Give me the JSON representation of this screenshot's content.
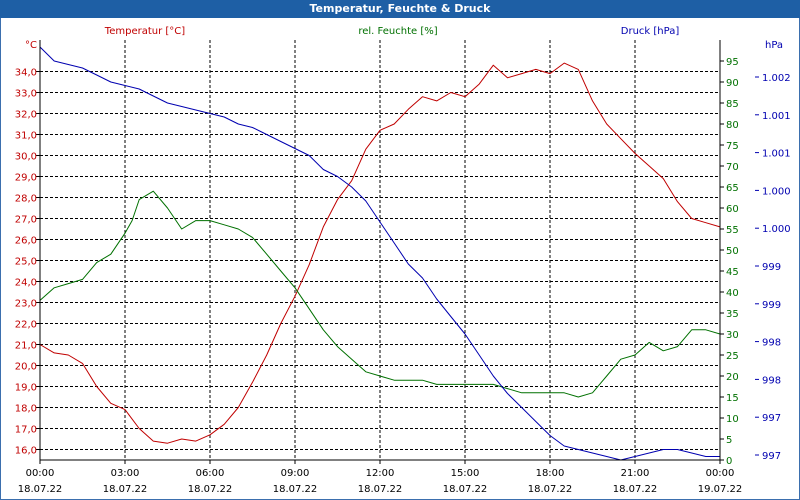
{
  "window": {
    "title": "Temperatur, Feuchte & Druck"
  },
  "colors": {
    "temperature": "#c00000",
    "humidity": "#007000",
    "pressure": "#0000b0",
    "grid": "#000000",
    "axis_text": "#000000",
    "titlebar": "#1e5fa5"
  },
  "chart_data": {
    "type": "line",
    "title": "Temperatur, Feuchte & Druck",
    "grid": true,
    "x_labels": [
      {
        "time": "00:00",
        "date": "18.07.22"
      },
      {
        "time": "03:00",
        "date": "18.07.22"
      },
      {
        "time": "06:00",
        "date": "18.07.22"
      },
      {
        "time": "09:00",
        "date": "18.07.22"
      },
      {
        "time": "12:00",
        "date": "18.07.22"
      },
      {
        "time": "15:00",
        "date": "18.07.22"
      },
      {
        "time": "18:00",
        "date": "18.07.22"
      },
      {
        "time": "21:00",
        "date": "18.07.22"
      },
      {
        "time": "00:00",
        "date": "19.07.22"
      }
    ],
    "x_range_hours": [
      0,
      24
    ],
    "axes": {
      "temperature": {
        "label": "Temperatur [°C]",
        "unit": "°C",
        "ylim": [
          15.5,
          35.5
        ],
        "ticks": [
          "16,0",
          "17,0",
          "18,0",
          "19,0",
          "20,0",
          "21,0",
          "22,0",
          "23,0",
          "24,0",
          "25,0",
          "26,0",
          "27,0",
          "28,0",
          "29,0",
          "30,0",
          "31,0",
          "32,0",
          "33,0",
          "34,0"
        ]
      },
      "humidity": {
        "label": "rel. Feuchte [%]",
        "unit": "%",
        "ylim": [
          0,
          100
        ],
        "ticks": [
          "0",
          "5",
          "10",
          "15",
          "20",
          "25",
          "30",
          "35",
          "40",
          "45",
          "50",
          "55",
          "60",
          "65",
          "70",
          "75",
          "80",
          "85",
          "90",
          "95"
        ]
      },
      "pressure": {
        "label": "Druck [hPa]",
        "unit": "hPa",
        "ticks": [
          "997",
          "997",
          "998",
          "998",
          "999",
          "999",
          "1.000",
          "1.000",
          "1.001",
          "1.001",
          "1.002"
        ]
      }
    },
    "series": [
      {
        "name": "Temperatur [°C]",
        "axis": "temperature",
        "x": [
          0,
          0.5,
          1,
          1.5,
          2,
          2.5,
          3,
          3.5,
          4,
          4.5,
          5,
          5.5,
          6,
          6.5,
          7,
          7.5,
          8,
          8.5,
          9,
          9.5,
          10,
          10.5,
          11,
          11.5,
          12,
          12.5,
          13,
          13.5,
          14,
          14.5,
          15,
          15.5,
          16,
          16.5,
          17,
          17.5,
          18,
          18.5,
          19,
          19.5,
          20,
          20.5,
          21,
          21.5,
          22,
          22.5,
          23,
          23.5,
          24
        ],
        "values": [
          21.0,
          20.6,
          20.5,
          20.1,
          19.0,
          18.2,
          17.9,
          17.0,
          16.4,
          16.3,
          16.5,
          16.4,
          16.7,
          17.2,
          18.0,
          19.2,
          20.5,
          22.0,
          23.3,
          24.8,
          26.6,
          27.9,
          28.8,
          30.3,
          31.2,
          31.5,
          32.2,
          32.8,
          32.6,
          33.0,
          32.8,
          33.4,
          34.3,
          33.7,
          33.9,
          34.1,
          33.9,
          34.4,
          34.1,
          32.6,
          31.5,
          30.8,
          30.1,
          29.5,
          28.9,
          27.8,
          27.0,
          26.8,
          26.6
        ]
      },
      {
        "name": "rel. Feuchte [%]",
        "axis": "humidity",
        "x": [
          0,
          0.5,
          1,
          1.5,
          2,
          2.5,
          3,
          3.25,
          3.5,
          4,
          4.5,
          5,
          5.5,
          6,
          6.5,
          7,
          7.5,
          8,
          8.5,
          9,
          9.5,
          10,
          10.5,
          11,
          11.5,
          12,
          12.5,
          13,
          13.5,
          14,
          14.5,
          15,
          15.5,
          16,
          16.5,
          17,
          17.5,
          18,
          18.5,
          19,
          19.5,
          20,
          20.5,
          21,
          21.5,
          22,
          22.5,
          23,
          23.5,
          24
        ],
        "values": [
          38,
          41,
          42,
          43,
          47,
          49,
          54,
          57,
          62,
          64,
          60,
          55,
          57,
          57,
          56,
          55,
          53,
          49,
          45,
          41,
          36,
          31,
          27,
          24,
          21,
          20,
          19,
          19,
          19,
          18,
          18,
          18,
          18,
          18,
          17,
          16,
          16,
          16,
          16,
          15,
          16,
          20,
          24,
          25,
          28,
          26,
          27,
          31,
          31,
          30
        ]
      },
      {
        "name": "Druck [hPa]",
        "axis": "pressure",
        "x": [
          0,
          0.5,
          1,
          1.5,
          2,
          2.5,
          3,
          3.5,
          4,
          4.5,
          5,
          5.5,
          6,
          6.5,
          7,
          7.5,
          8,
          8.5,
          9,
          9.5,
          10,
          10.5,
          11,
          11.5,
          12,
          12.5,
          13,
          13.5,
          14,
          14.5,
          15,
          15.5,
          16,
          16.5,
          17,
          17.5,
          18,
          18.5,
          19,
          19.5,
          20,
          20.5,
          21,
          21.5,
          22,
          22.5,
          23,
          23.5,
          24
        ],
        "values": [
          1002.3,
          1002.1,
          1002.05,
          1002.0,
          1001.9,
          1001.8,
          1001.75,
          1001.7,
          1001.6,
          1001.5,
          1001.45,
          1001.4,
          1001.35,
          1001.3,
          1001.2,
          1001.15,
          1001.05,
          1000.95,
          1000.85,
          1000.75,
          1000.55,
          1000.45,
          1000.3,
          1000.1,
          999.8,
          999.5,
          999.2,
          999.0,
          998.7,
          998.45,
          998.2,
          997.9,
          997.6,
          997.35,
          997.15,
          996.95,
          996.75,
          996.6,
          996.55,
          996.5,
          996.45,
          996.4,
          996.45,
          996.5,
          996.55,
          996.55,
          996.5,
          996.45,
          996.45
        ]
      }
    ]
  }
}
